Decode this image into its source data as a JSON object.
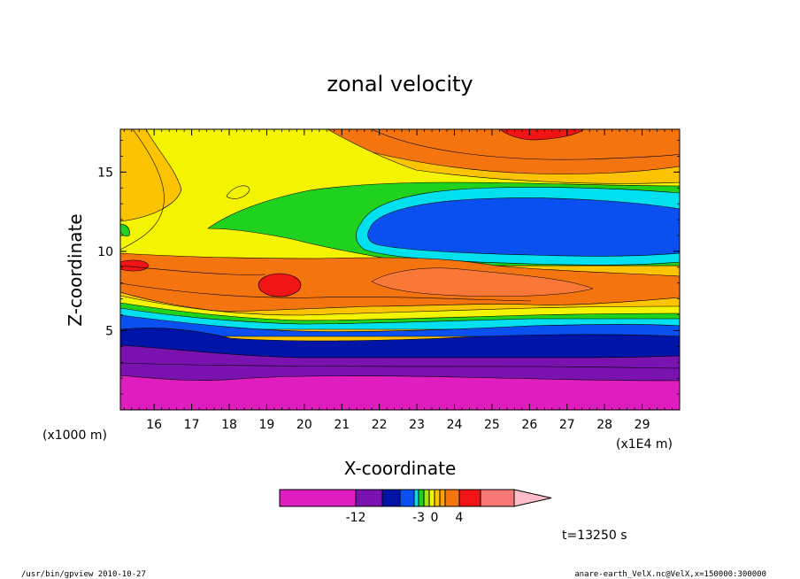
{
  "chart_data": {
    "type": "heatmap",
    "title": "zonal velocity",
    "xlabel": "X-coordinate",
    "ylabel": "Z-coordinate",
    "x_unit": "(x1E4 m)",
    "y_unit": "(x1000 m)",
    "xlim": [
      15.1,
      30.0
    ],
    "ylim": [
      0,
      17.7
    ],
    "x_ticks": [
      "16",
      "17",
      "18",
      "19",
      "20",
      "21",
      "22",
      "23",
      "24",
      "25",
      "26",
      "27",
      "28",
      "29"
    ],
    "y_ticks": [
      "5",
      "10",
      "15"
    ],
    "colorbar": {
      "tick_labels": [
        "-12",
        "-3",
        "0",
        "4"
      ],
      "bins": [
        {
          "color": "#e01ec0",
          "from": -20,
          "to": -12
        },
        {
          "color": "#7a12b0",
          "from": -12,
          "to": -9
        },
        {
          "color": "#0014a8",
          "from": -9,
          "to": -6
        },
        {
          "color": "#0a50f0",
          "from": -6,
          "to": -4
        },
        {
          "color": "#00e0ee",
          "from": -4,
          "to": -3
        },
        {
          "color": "#1ed21e",
          "from": -3,
          "to": -2
        },
        {
          "color": "#a0e610",
          "from": -2,
          "to": -1
        },
        {
          "color": "#f4f400",
          "from": -1,
          "to": 0
        },
        {
          "color": "#fcc400",
          "from": 0,
          "to": 1
        },
        {
          "color": "#fda00a",
          "from": 1,
          "to": 2
        },
        {
          "color": "#f47410",
          "from": 2,
          "to": 4
        },
        {
          "color": "#f01414",
          "from": 4,
          "to": 6
        },
        {
          "color": "#f87878",
          "from": 6,
          "to": 9
        },
        {
          "color": "#fcbcc8",
          "from": 9,
          "to": null
        }
      ]
    },
    "regions": [
      {
        "name": "lowest layer",
        "value_range": [
          -20,
          -12
        ],
        "z_range": [
          0,
          2.6
        ]
      },
      {
        "name": "purple layer",
        "value_range": [
          -12,
          -9
        ],
        "z_range": [
          2.6,
          4.0
        ]
      },
      {
        "name": "navy layer",
        "value_range": [
          -9,
          -6
        ],
        "z_range": [
          4.0,
          5.2
        ]
      },
      {
        "name": "mid-level easterly jet",
        "value_range": [
          -6,
          -4
        ],
        "x_range": [
          21.5,
          30.0
        ],
        "z_range": [
          10.3,
          13.1
        ]
      },
      {
        "name": "mid-level westerly band",
        "value_range": [
          2,
          4
        ],
        "z_range": [
          7.0,
          9.8
        ]
      },
      {
        "name": "westerly maximum",
        "value_range": [
          4,
          6
        ],
        "x": 19.3,
        "z": 7.8
      },
      {
        "name": "western westerly maximum",
        "value_range": [
          4,
          6
        ],
        "x": 15.6,
        "z": 8.7
      },
      {
        "name": "upper westerly maximum",
        "value_range": [
          4,
          6
        ],
        "x": 26.0,
        "z": 17.4
      }
    ],
    "time_label": "t=13250 s"
  },
  "footer": {
    "left": "/usr/bin/gpview  2010-10-27",
    "right": "anare-earth_VelX.nc@VelX,x=150000:300000"
  }
}
